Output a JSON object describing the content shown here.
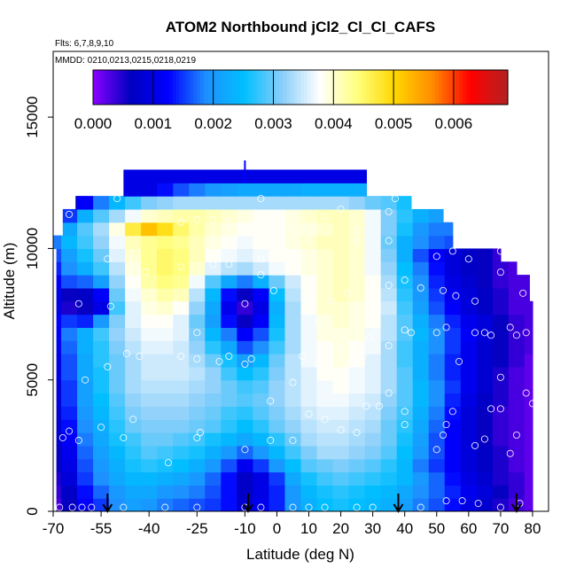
{
  "chart_data": {
    "type": "heatmap",
    "title": "ATOM2 Northbound jCl2_Cl_Cl_CAFS",
    "flights_note": "Flts: 6,7,8,9,10",
    "dates_note": "MMDD: 0210,0213,0215,0218,0219",
    "xlabel": "Latitude (deg N)",
    "ylabel": "Altitude (m)",
    "xlim": [
      -70,
      85
    ],
    "ylim": [
      0,
      17500
    ],
    "x_ticks": [
      -70,
      -55,
      -40,
      -25,
      -10,
      0,
      10,
      20,
      30,
      40,
      50,
      60,
      70,
      80
    ],
    "y_ticks": [
      0,
      5000,
      10000,
      15000
    ],
    "colorbar": {
      "range": [
        0,
        0.0069
      ],
      "ticks": [
        "0.000",
        "0.001",
        "0.002",
        "0.003",
        "0.004",
        "0.005",
        "0.006"
      ],
      "colors": [
        "#8b00ff",
        "#0000c0",
        "#0000ff",
        "#1e90ff",
        "#00bfff",
        "#87cefa",
        "#ffffff",
        "#ffff80",
        "#ffd700",
        "#ff8c00",
        "#ff0000",
        "#b22222"
      ]
    },
    "altitude_rows_m": [
      0,
      500,
      1000,
      1500,
      2000,
      2500,
      3000,
      3500,
      4000,
      4500,
      5000,
      5500,
      6000,
      6500,
      7000,
      7500,
      8000,
      8500,
      9000,
      9500,
      10000,
      10500,
      11000,
      11500,
      12000,
      12500
    ],
    "row_lat_extent": [
      [
        -69,
        80
      ],
      [
        -69,
        80
      ],
      [
        -69,
        80
      ],
      [
        -69,
        80
      ],
      [
        -69,
        80
      ],
      [
        -69,
        80
      ],
      [
        -69,
        80
      ],
      [
        -69,
        80
      ],
      [
        -69,
        80
      ],
      [
        -69,
        80
      ],
      [
        -69,
        80
      ],
      [
        -69,
        80
      ],
      [
        -69,
        80
      ],
      [
        -69,
        80
      ],
      [
        -69,
        80
      ],
      [
        -69,
        80
      ],
      [
        -69,
        79
      ],
      [
        -69,
        79
      ],
      [
        -69,
        75
      ],
      [
        -69,
        70
      ],
      [
        -70,
        55
      ],
      [
        -67,
        55
      ],
      [
        -67,
        52
      ],
      [
        -63,
        42
      ],
      [
        -48,
        28
      ],
      [
        -48,
        28
      ]
    ],
    "lat_columns": [
      -70,
      -65,
      -60,
      -55,
      -50,
      -45,
      -40,
      -35,
      -30,
      -25,
      -20,
      -15,
      -10,
      -5,
      0,
      5,
      10,
      15,
      20,
      25,
      30,
      35,
      40,
      45,
      50,
      55,
      60,
      65,
      70,
      75,
      80
    ],
    "values_e3": [
      [
        0.3,
        0.6,
        1.2,
        1.5,
        1.9,
        2.1,
        2.0,
        1.8,
        1.7,
        1.6,
        1.5,
        1.3,
        0.8,
        1.1,
        1.4,
        2.0,
        2.3,
        2.5,
        2.6,
        2.5,
        2.4,
        2.3,
        2.1,
        1.8,
        1.6,
        1.3,
        1.0,
        0.8,
        0.5,
        0.3,
        0.2
      ],
      [
        0.4,
        0.7,
        1.3,
        1.7,
        2.0,
        2.2,
        2.2,
        2.0,
        1.9,
        1.8,
        1.6,
        1.3,
        0.7,
        1.0,
        1.4,
        2.0,
        2.4,
        2.6,
        2.7,
        2.6,
        2.5,
        2.4,
        2.2,
        1.9,
        1.7,
        1.4,
        1.1,
        0.9,
        0.6,
        0.4,
        0.2
      ],
      [
        0.5,
        0.9,
        1.5,
        1.9,
        2.2,
        2.4,
        2.4,
        2.3,
        2.2,
        2.0,
        1.7,
        1.3,
        0.7,
        1.0,
        1.5,
        2.2,
        2.6,
        2.8,
        2.9,
        2.8,
        2.7,
        2.6,
        2.4,
        2.0,
        1.7,
        1.3,
        1.0,
        0.8,
        0.5,
        0.4,
        0.2
      ],
      [
        0.6,
        1.0,
        1.6,
        2.0,
        2.3,
        2.6,
        2.7,
        2.6,
        2.5,
        2.3,
        2.0,
        1.6,
        1.1,
        1.5,
        2.0,
        2.5,
        2.9,
        3.0,
        3.1,
        3.0,
        2.9,
        2.7,
        2.4,
        1.8,
        1.5,
        1.2,
        0.9,
        0.7,
        0.5,
        0.3,
        0.2
      ],
      [
        0.6,
        1.1,
        1.7,
        2.1,
        2.4,
        2.7,
        2.9,
        2.8,
        2.7,
        2.6,
        2.3,
        2.0,
        1.7,
        2.0,
        2.4,
        2.8,
        3.1,
        3.3,
        3.3,
        3.2,
        3.1,
        2.9,
        2.5,
        2.0,
        1.6,
        1.2,
        0.9,
        0.7,
        0.5,
        0.3,
        0.2
      ],
      [
        0.7,
        1.2,
        1.8,
        2.2,
        2.6,
        2.8,
        3.0,
        3.0,
        2.9,
        2.8,
        2.6,
        2.4,
        2.2,
        2.4,
        2.7,
        3.0,
        3.3,
        3.4,
        3.4,
        3.3,
        3.2,
        3.0,
        2.6,
        2.1,
        1.6,
        1.2,
        0.9,
        0.6,
        0.4,
        0.3,
        0.2
      ],
      [
        0.8,
        1.3,
        1.9,
        2.3,
        2.7,
        3.0,
        3.1,
        3.1,
        3.1,
        3.0,
        2.9,
        2.7,
        2.5,
        2.7,
        3.0,
        3.2,
        3.4,
        3.5,
        3.5,
        3.4,
        3.3,
        3.0,
        2.7,
        2.2,
        1.7,
        1.2,
        0.9,
        0.6,
        0.4,
        0.3,
        0.2
      ],
      [
        0.8,
        1.4,
        2.0,
        2.4,
        2.8,
        3.1,
        3.2,
        3.2,
        3.2,
        3.1,
        3.0,
        2.8,
        2.7,
        2.9,
        3.1,
        3.3,
        3.5,
        3.6,
        3.6,
        3.5,
        3.4,
        3.1,
        2.8,
        2.3,
        1.8,
        1.3,
        0.9,
        0.6,
        0.4,
        0.3,
        0.2
      ],
      [
        0.9,
        1.5,
        2.1,
        2.5,
        2.9,
        3.2,
        3.3,
        3.3,
        3.3,
        3.2,
        3.1,
        3.0,
        2.9,
        3.0,
        3.2,
        3.4,
        3.6,
        3.7,
        3.7,
        3.6,
        3.5,
        3.2,
        2.9,
        2.4,
        1.9,
        1.4,
        1.0,
        0.7,
        0.5,
        0.3,
        0.2
      ],
      [
        0.9,
        1.5,
        2.1,
        2.6,
        3.0,
        3.3,
        3.4,
        3.4,
        3.4,
        3.3,
        3.2,
        3.0,
        2.8,
        2.9,
        3.2,
        3.4,
        3.6,
        3.7,
        3.8,
        3.7,
        3.6,
        3.3,
        2.9,
        2.4,
        1.9,
        1.5,
        1.1,
        0.8,
        0.5,
        0.3,
        0.2
      ],
      [
        1.0,
        1.6,
        2.2,
        2.6,
        3.0,
        3.3,
        3.5,
        3.5,
        3.5,
        3.4,
        3.2,
        2.8,
        2.5,
        2.7,
        3.1,
        3.4,
        3.6,
        3.8,
        3.8,
        3.7,
        3.6,
        3.3,
        2.9,
        2.3,
        1.8,
        1.4,
        1.1,
        0.8,
        0.5,
        0.3,
        0.2
      ],
      [
        1.0,
        1.6,
        2.2,
        2.7,
        3.0,
        3.3,
        3.5,
        3.5,
        3.5,
        3.3,
        3.0,
        2.6,
        2.1,
        2.4,
        3.0,
        3.4,
        3.7,
        3.8,
        3.9,
        3.8,
        3.6,
        3.3,
        2.8,
        2.3,
        1.8,
        1.4,
        1.1,
        0.8,
        0.6,
        0.4,
        0.2
      ],
      [
        1.1,
        1.7,
        2.3,
        2.7,
        3.1,
        3.4,
        3.6,
        3.6,
        3.5,
        3.2,
        2.7,
        2.2,
        1.6,
        1.9,
        2.8,
        3.3,
        3.7,
        3.8,
        3.9,
        3.8,
        3.7,
        3.3,
        2.8,
        2.3,
        1.9,
        1.5,
        1.1,
        0.8,
        0.6,
        0.4,
        0.3
      ],
      [
        1.2,
        1.8,
        2.3,
        2.8,
        3.2,
        3.5,
        3.7,
        3.7,
        3.6,
        3.1,
        2.4,
        1.8,
        1.2,
        1.6,
        2.6,
        3.3,
        3.7,
        3.9,
        3.9,
        3.9,
        3.7,
        3.4,
        2.9,
        2.4,
        1.9,
        1.5,
        1.2,
        0.9,
        0.6,
        0.4,
        0.3
      ],
      [
        1.2,
        1.5,
        1.4,
        2.0,
        3.1,
        3.6,
        3.8,
        3.8,
        3.6,
        3.0,
        2.1,
        1.3,
        0.6,
        1.2,
        2.4,
        3.3,
        3.7,
        3.9,
        4.0,
        3.9,
        3.8,
        3.4,
        2.9,
        2.3,
        1.8,
        1.4,
        1.1,
        0.9,
        0.6,
        0.4,
        0.3
      ],
      [
        1.0,
        0.5,
        0.6,
        1.0,
        2.8,
        3.6,
        3.9,
        4.0,
        3.8,
        3.2,
        2.2,
        1.1,
        0.4,
        1.0,
        2.3,
        3.3,
        3.8,
        4.0,
        4.0,
        3.9,
        3.8,
        3.5,
        2.8,
        2.1,
        1.6,
        1.2,
        0.9,
        0.7,
        0.5,
        0.3,
        0.3
      ],
      [
        1.0,
        0.6,
        0.7,
        1.2,
        3.0,
        3.7,
        4.0,
        4.2,
        4.1,
        3.4,
        2.4,
        1.3,
        0.6,
        1.2,
        2.5,
        3.4,
        3.8,
        4.0,
        4.1,
        4.0,
        3.8,
        3.4,
        2.7,
        2.0,
        1.5,
        1.1,
        0.9,
        0.7,
        0.5,
        0.3,
        0.3
      ],
      [
        1.2,
        1.6,
        1.7,
        2.1,
        3.2,
        3.8,
        4.2,
        4.4,
        4.3,
        3.7,
        2.9,
        2.2,
        1.8,
        2.3,
        3.0,
        3.5,
        3.8,
        4.0,
        4.1,
        4.0,
        3.8,
        3.3,
        2.6,
        1.9,
        1.4,
        1.0,
        0.8,
        0.6,
        0.4,
        0.3,
        0.3
      ],
      [
        1.4,
        1.9,
        2.3,
        2.8,
        3.4,
        3.9,
        4.3,
        4.5,
        4.4,
        4.0,
        3.6,
        3.4,
        3.3,
        3.5,
        3.7,
        3.8,
        3.9,
        4.0,
        4.1,
        4.0,
        3.7,
        3.2,
        2.5,
        1.8,
        1.3,
        0.9,
        0.7,
        0.6,
        0.4,
        0.3,
        0.3
      ],
      [
        1.6,
        2.1,
        2.6,
        3.0,
        3.6,
        4.0,
        4.3,
        4.5,
        4.4,
        4.1,
        3.8,
        3.7,
        3.6,
        3.7,
        3.8,
        3.8,
        3.9,
        4.0,
        4.1,
        4.0,
        3.7,
        3.1,
        2.3,
        1.6,
        1.2,
        0.9,
        0.7,
        0.6,
        0.4,
        0.3,
        0.3
      ],
      [
        1.8,
        2.4,
        2.8,
        3.2,
        3.7,
        4.1,
        4.3,
        4.4,
        4.3,
        4.1,
        3.9,
        3.8,
        3.7,
        3.8,
        3.8,
        3.9,
        4.0,
        4.1,
        4.1,
        4.0,
        3.7,
        3.0,
        2.3,
        1.9,
        1.7,
        1.6,
        1.6,
        1.6,
        1.6,
        1.6,
        1.6
      ],
      [
        1.6,
        2.2,
        2.9,
        3.3,
        3.9,
        4.7,
        5.2,
        4.9,
        4.5,
        4.2,
        4.0,
        3.9,
        3.8,
        3.8,
        3.8,
        3.9,
        3.9,
        4.0,
        4.1,
        4.0,
        3.7,
        3.1,
        2.6,
        2.0,
        1.8,
        1.8,
        1.8,
        1.8,
        1.8,
        1.8,
        1.8
      ],
      [
        0.9,
        1.5,
        2.3,
        2.9,
        3.3,
        3.7,
        4.0,
        4.1,
        4.2,
        4.2,
        4.1,
        4.0,
        3.9,
        3.8,
        3.8,
        3.9,
        4.0,
        4.1,
        4.1,
        4.0,
        3.7,
        3.1,
        2.7,
        2.3,
        2.1,
        2.1,
        2.1,
        2.1,
        2.1,
        2.1,
        2.1
      ],
      [
        0.4,
        0.7,
        1.2,
        1.8,
        2.4,
        2.8,
        3.1,
        3.2,
        3.3,
        3.3,
        3.3,
        3.3,
        3.3,
        3.3,
        3.3,
        3.3,
        3.3,
        3.3,
        3.3,
        3.2,
        3.0,
        2.9,
        2.6,
        2.4,
        2.4,
        2.4,
        2.4,
        2.4,
        2.4,
        2.4,
        2.4
      ],
      [
        1.0,
        1.0,
        1.0,
        1.0,
        1.0,
        1.0,
        1.0,
        1.3,
        1.6,
        1.8,
        2.0,
        2.1,
        2.2,
        2.2,
        2.2,
        2.2,
        2.3,
        2.3,
        2.3,
        2.3,
        2.2,
        2.2,
        2.2,
        2.2,
        2.2,
        2.2,
        2.2,
        2.2,
        2.2,
        2.2,
        2.2
      ],
      [
        1.0,
        1.0,
        1.0,
        1.0,
        1.0,
        1.0,
        1.0,
        1.0,
        1.0,
        1.0,
        1.0,
        1.0,
        1.0,
        1.0,
        1.0,
        1.0,
        1.0,
        1.0,
        1.0,
        1.0,
        1.0,
        1.0,
        1.0,
        1.0,
        1.0,
        1.0,
        1.0,
        1.0,
        1.0,
        1.0,
        1.0
      ]
    ],
    "arrows_lat": [
      -53,
      -9,
      38,
      75
    ],
    "tick_marker": {
      "lat": -10,
      "alt": 12850
    },
    "obs_points": [
      [
        -68,
        150
      ],
      [
        -64,
        150
      ],
      [
        -61,
        150
      ],
      [
        -58,
        150
      ],
      [
        -48,
        150
      ],
      [
        -35,
        150
      ],
      [
        -25,
        150
      ],
      [
        -10,
        150
      ],
      [
        -5,
        150
      ],
      [
        5,
        150
      ],
      [
        10,
        150
      ],
      [
        15,
        150
      ],
      [
        25,
        150
      ],
      [
        30,
        150
      ],
      [
        45,
        150
      ],
      [
        53,
        400
      ],
      [
        58,
        400
      ],
      [
        63,
        300
      ],
      [
        70,
        150
      ],
      [
        76,
        300
      ],
      [
        -67,
        2800
      ],
      [
        -65,
        3050
      ],
      [
        -62,
        2700
      ],
      [
        -55,
        3200
      ],
      [
        -48,
        2800
      ],
      [
        -45,
        3500
      ],
      [
        -34,
        1850
      ],
      [
        -25,
        2800
      ],
      [
        -24,
        3000
      ],
      [
        -10,
        2350
      ],
      [
        -2,
        2700
      ],
      [
        5,
        2700
      ],
      [
        10,
        3700
      ],
      [
        15,
        3500
      ],
      [
        20,
        3100
      ],
      [
        25,
        3000
      ],
      [
        28,
        4000
      ],
      [
        32,
        4000
      ],
      [
        35,
        4500
      ],
      [
        40,
        3800
      ],
      [
        40,
        3300
      ],
      [
        50,
        2350
      ],
      [
        52,
        2900
      ],
      [
        53,
        3300
      ],
      [
        55,
        3800
      ],
      [
        62,
        2500
      ],
      [
        65,
        2750
      ],
      [
        67,
        3900
      ],
      [
        70,
        3900
      ],
      [
        73,
        2200
      ],
      [
        75,
        2900
      ],
      [
        78,
        4500
      ],
      [
        80,
        4100
      ],
      [
        -60,
        5000
      ],
      [
        -53,
        5500
      ],
      [
        -47,
        6000
      ],
      [
        -43,
        5900
      ],
      [
        -30,
        5900
      ],
      [
        -25,
        5800
      ],
      [
        -18,
        5700
      ],
      [
        -15,
        5900
      ],
      [
        -10,
        5600
      ],
      [
        -8,
        5800
      ],
      [
        -2,
        4200
      ],
      [
        5,
        4900
      ],
      [
        8,
        5900
      ],
      [
        13,
        5600
      ],
      [
        20,
        6200
      ],
      [
        23,
        5600
      ],
      [
        27,
        5900
      ],
      [
        35,
        6300
      ],
      [
        40,
        6900
      ],
      [
        42,
        6800
      ],
      [
        50,
        6800
      ],
      [
        53,
        7000
      ],
      [
        57,
        5700
      ],
      [
        62,
        6800
      ],
      [
        65,
        6800
      ],
      [
        67,
        6700
      ],
      [
        70,
        5100
      ],
      [
        73,
        7000
      ],
      [
        75,
        6700
      ],
      [
        78,
        6800
      ],
      [
        -62,
        7900
      ],
      [
        -52,
        7800
      ],
      [
        -41,
        9100
      ],
      [
        -32,
        7900
      ],
      [
        -25,
        6800
      ],
      [
        -10,
        7900
      ],
      [
        -5,
        9000
      ],
      [
        -1,
        8400
      ],
      [
        10,
        8100
      ],
      [
        13,
        7200
      ],
      [
        17,
        8000
      ],
      [
        22,
        8300
      ],
      [
        29,
        6600
      ],
      [
        35,
        8600
      ],
      [
        40,
        8800
      ],
      [
        45,
        8500
      ],
      [
        52,
        8400
      ],
      [
        56,
        8200
      ],
      [
        62,
        8000
      ],
      [
        70,
        9100
      ],
      [
        77,
        8300
      ],
      [
        -53,
        9600
      ],
      [
        -45,
        9600
      ],
      [
        -30,
        9300
      ],
      [
        -20,
        9400
      ],
      [
        -15,
        9400
      ],
      [
        -5,
        9600
      ],
      [
        5,
        9800
      ],
      [
        10,
        10300
      ],
      [
        25,
        10300
      ],
      [
        35,
        10300
      ],
      [
        50,
        9700
      ],
      [
        55,
        9900
      ],
      [
        60,
        9600
      ],
      [
        70,
        9900
      ],
      [
        -65,
        11300
      ],
      [
        -50,
        11900
      ],
      [
        -30,
        11000
      ],
      [
        -25,
        11100
      ],
      [
        -20,
        11100
      ],
      [
        -15,
        11000
      ],
      [
        -5,
        11900
      ],
      [
        5,
        10700
      ],
      [
        15,
        11200
      ],
      [
        20,
        11500
      ],
      [
        25,
        10700
      ],
      [
        35,
        11400
      ],
      [
        37,
        11900
      ]
    ]
  }
}
